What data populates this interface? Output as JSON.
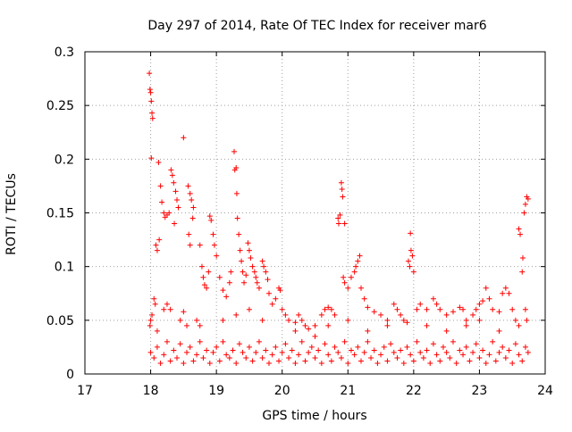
{
  "chart_data": {
    "type": "scatter",
    "title": "Day 297 of 2014, Rate Of TEC Index for receiver mar6",
    "xlabel": "GPS time / hours",
    "ylabel": "ROTI / TECUs",
    "xlim": [
      17,
      24
    ],
    "ylim": [
      0,
      0.3
    ],
    "x_ticks": [
      17,
      18,
      19,
      20,
      21,
      22,
      23,
      24
    ],
    "x_tick_labels": [
      "17",
      "18",
      "19",
      "20",
      "21",
      "22",
      "23",
      "24"
    ],
    "y_ticks": [
      0,
      0.05,
      0.1,
      0.15,
      0.2,
      0.25,
      0.3
    ],
    "y_tick_labels": [
      "0",
      "0.05",
      "0.1",
      "0.15",
      "0.2",
      "0.25",
      "0.3"
    ],
    "grid": true,
    "marker": "+",
    "color": "#ff0000",
    "series": [
      {
        "name": "ROTI",
        "points": [
          [
            17.98,
            0.28
          ],
          [
            17.99,
            0.265
          ],
          [
            18.0,
            0.262
          ],
          [
            18.01,
            0.254
          ],
          [
            18.02,
            0.243
          ],
          [
            18.03,
            0.238
          ],
          [
            18.01,
            0.201
          ],
          [
            18.12,
            0.197
          ],
          [
            18.15,
            0.175
          ],
          [
            18.17,
            0.16
          ],
          [
            18.2,
            0.15
          ],
          [
            18.22,
            0.146
          ],
          [
            18.25,
            0.148
          ],
          [
            18.28,
            0.15
          ],
          [
            18.08,
            0.12
          ],
          [
            18.1,
            0.115
          ],
          [
            18.13,
            0.125
          ],
          [
            18.31,
            0.19
          ],
          [
            18.33,
            0.185
          ],
          [
            18.35,
            0.178
          ],
          [
            18.38,
            0.17
          ],
          [
            18.4,
            0.162
          ],
          [
            18.42,
            0.155
          ],
          [
            18.36,
            0.14
          ],
          [
            18.5,
            0.22
          ],
          [
            18.57,
            0.175
          ],
          [
            18.6,
            0.168
          ],
          [
            18.62,
            0.162
          ],
          [
            18.65,
            0.155
          ],
          [
            18.58,
            0.13
          ],
          [
            18.6,
            0.12
          ],
          [
            18.64,
            0.145
          ],
          [
            18.75,
            0.12
          ],
          [
            18.78,
            0.1
          ],
          [
            18.8,
            0.09
          ],
          [
            18.82,
            0.083
          ],
          [
            18.85,
            0.08
          ],
          [
            18.9,
            0.147
          ],
          [
            18.92,
            0.143
          ],
          [
            18.95,
            0.13
          ],
          [
            18.97,
            0.12
          ],
          [
            19.0,
            0.11
          ],
          [
            18.88,
            0.095
          ],
          [
            19.05,
            0.09
          ],
          [
            19.1,
            0.078
          ],
          [
            19.15,
            0.072
          ],
          [
            19.2,
            0.085
          ],
          [
            19.22,
            0.095
          ],
          [
            19.27,
            0.207
          ],
          [
            19.28,
            0.19
          ],
          [
            19.3,
            0.192
          ],
          [
            19.31,
            0.168
          ],
          [
            19.32,
            0.145
          ],
          [
            19.34,
            0.13
          ],
          [
            19.36,
            0.115
          ],
          [
            19.38,
            0.105
          ],
          [
            19.4,
            0.095
          ],
          [
            19.42,
            0.085
          ],
          [
            19.45,
            0.092
          ],
          [
            19.48,
            0.122
          ],
          [
            19.5,
            0.115
          ],
          [
            19.52,
            0.108
          ],
          [
            19.55,
            0.1
          ],
          [
            19.58,
            0.095
          ],
          [
            19.6,
            0.09
          ],
          [
            19.62,
            0.085
          ],
          [
            19.65,
            0.08
          ],
          [
            19.7,
            0.105
          ],
          [
            19.72,
            0.1
          ],
          [
            19.75,
            0.095
          ],
          [
            19.78,
            0.088
          ],
          [
            19.8,
            0.075
          ],
          [
            19.85,
            0.065
          ],
          [
            19.9,
            0.07
          ],
          [
            19.95,
            0.08
          ],
          [
            19.97,
            0.078
          ],
          [
            20.0,
            0.06
          ],
          [
            20.05,
            0.055
          ],
          [
            20.1,
            0.05
          ],
          [
            20.2,
            0.048
          ],
          [
            20.25,
            0.055
          ],
          [
            20.3,
            0.05
          ],
          [
            20.35,
            0.045
          ],
          [
            20.4,
            0.042
          ],
          [
            20.5,
            0.045
          ],
          [
            20.6,
            0.055
          ],
          [
            20.65,
            0.06
          ],
          [
            20.7,
            0.062
          ],
          [
            20.75,
            0.06
          ],
          [
            20.8,
            0.055
          ],
          [
            20.85,
            0.145
          ],
          [
            20.86,
            0.14
          ],
          [
            20.88,
            0.148
          ],
          [
            20.9,
            0.178
          ],
          [
            20.91,
            0.172
          ],
          [
            20.92,
            0.165
          ],
          [
            20.95,
            0.14
          ],
          [
            20.93,
            0.09
          ],
          [
            20.95,
            0.085
          ],
          [
            21.0,
            0.08
          ],
          [
            21.05,
            0.09
          ],
          [
            21.1,
            0.095
          ],
          [
            21.12,
            0.1
          ],
          [
            21.15,
            0.105
          ],
          [
            21.18,
            0.11
          ],
          [
            21.2,
            0.08
          ],
          [
            21.25,
            0.07
          ],
          [
            21.3,
            0.062
          ],
          [
            21.4,
            0.058
          ],
          [
            21.5,
            0.055
          ],
          [
            21.6,
            0.05
          ],
          [
            21.7,
            0.065
          ],
          [
            21.75,
            0.06
          ],
          [
            21.8,
            0.055
          ],
          [
            21.85,
            0.05
          ],
          [
            21.9,
            0.048
          ],
          [
            21.92,
            0.105
          ],
          [
            21.94,
            0.1
          ],
          [
            21.95,
            0.131
          ],
          [
            21.96,
            0.115
          ],
          [
            21.98,
            0.11
          ],
          [
            22.0,
            0.095
          ],
          [
            22.05,
            0.06
          ],
          [
            22.1,
            0.065
          ],
          [
            22.2,
            0.06
          ],
          [
            22.3,
            0.07
          ],
          [
            22.35,
            0.065
          ],
          [
            22.4,
            0.06
          ],
          [
            22.5,
            0.055
          ],
          [
            22.6,
            0.058
          ],
          [
            22.7,
            0.062
          ],
          [
            22.75,
            0.06
          ],
          [
            22.8,
            0.05
          ],
          [
            22.9,
            0.055
          ],
          [
            22.95,
            0.06
          ],
          [
            23.0,
            0.065
          ],
          [
            23.05,
            0.068
          ],
          [
            23.1,
            0.08
          ],
          [
            23.15,
            0.07
          ],
          [
            23.2,
            0.06
          ],
          [
            23.3,
            0.058
          ],
          [
            23.35,
            0.075
          ],
          [
            23.4,
            0.08
          ],
          [
            23.45,
            0.075
          ],
          [
            23.5,
            0.06
          ],
          [
            23.55,
            0.05
          ],
          [
            23.6,
            0.135
          ],
          [
            23.62,
            0.13
          ],
          [
            23.65,
            0.095
          ],
          [
            23.66,
            0.108
          ],
          [
            23.68,
            0.15
          ],
          [
            23.7,
            0.158
          ],
          [
            23.72,
            0.165
          ],
          [
            23.74,
            0.163
          ],
          [
            23.7,
            0.06
          ],
          [
            23.72,
            0.05
          ],
          [
            17.99,
            0.045
          ],
          [
            18.0,
            0.05
          ],
          [
            18.02,
            0.055
          ],
          [
            18.05,
            0.07
          ],
          [
            18.07,
            0.065
          ],
          [
            18.1,
            0.04
          ],
          [
            18.2,
            0.06
          ],
          [
            18.25,
            0.065
          ],
          [
            18.3,
            0.06
          ],
          [
            18.45,
            0.05
          ],
          [
            18.5,
            0.058
          ],
          [
            18.55,
            0.045
          ],
          [
            18.7,
            0.05
          ],
          [
            18.75,
            0.045
          ],
          [
            19.1,
            0.05
          ],
          [
            19.3,
            0.055
          ],
          [
            19.5,
            0.06
          ],
          [
            19.7,
            0.05
          ],
          [
            20.2,
            0.04
          ],
          [
            20.5,
            0.035
          ],
          [
            20.7,
            0.045
          ],
          [
            21.0,
            0.05
          ],
          [
            21.3,
            0.04
          ],
          [
            21.6,
            0.045
          ],
          [
            22.2,
            0.045
          ],
          [
            22.5,
            0.04
          ],
          [
            22.8,
            0.045
          ],
          [
            23.0,
            0.05
          ],
          [
            23.3,
            0.04
          ],
          [
            23.6,
            0.045
          ],
          [
            18.0,
            0.02
          ],
          [
            18.05,
            0.015
          ],
          [
            18.1,
            0.025
          ],
          [
            18.15,
            0.01
          ],
          [
            18.2,
            0.018
          ],
          [
            18.25,
            0.03
          ],
          [
            18.3,
            0.012
          ],
          [
            18.35,
            0.022
          ],
          [
            18.4,
            0.015
          ],
          [
            18.45,
            0.028
          ],
          [
            18.5,
            0.01
          ],
          [
            18.55,
            0.02
          ],
          [
            18.6,
            0.025
          ],
          [
            18.65,
            0.012
          ],
          [
            18.7,
            0.018
          ],
          [
            18.75,
            0.03
          ],
          [
            18.8,
            0.015
          ],
          [
            18.85,
            0.022
          ],
          [
            18.9,
            0.01
          ],
          [
            18.95,
            0.02
          ],
          [
            19.0,
            0.025
          ],
          [
            19.05,
            0.012
          ],
          [
            19.1,
            0.03
          ],
          [
            19.15,
            0.018
          ],
          [
            19.2,
            0.015
          ],
          [
            19.25,
            0.022
          ],
          [
            19.3,
            0.01
          ],
          [
            19.35,
            0.028
          ],
          [
            19.4,
            0.02
          ],
          [
            19.45,
            0.015
          ],
          [
            19.5,
            0.025
          ],
          [
            19.55,
            0.012
          ],
          [
            19.6,
            0.02
          ],
          [
            19.65,
            0.03
          ],
          [
            19.7,
            0.015
          ],
          [
            19.75,
            0.022
          ],
          [
            19.8,
            0.01
          ],
          [
            19.85,
            0.018
          ],
          [
            19.9,
            0.025
          ],
          [
            19.95,
            0.012
          ],
          [
            20.0,
            0.02
          ],
          [
            20.05,
            0.028
          ],
          [
            20.1,
            0.015
          ],
          [
            20.15,
            0.022
          ],
          [
            20.2,
            0.01
          ],
          [
            20.25,
            0.018
          ],
          [
            20.3,
            0.03
          ],
          [
            20.35,
            0.012
          ],
          [
            20.4,
            0.02
          ],
          [
            20.45,
            0.025
          ],
          [
            20.5,
            0.015
          ],
          [
            20.55,
            0.022
          ],
          [
            20.6,
            0.01
          ],
          [
            20.65,
            0.028
          ],
          [
            20.7,
            0.018
          ],
          [
            20.75,
            0.012
          ],
          [
            20.8,
            0.025
          ],
          [
            20.85,
            0.02
          ],
          [
            20.9,
            0.015
          ],
          [
            20.95,
            0.03
          ],
          [
            21.0,
            0.01
          ],
          [
            21.05,
            0.022
          ],
          [
            21.1,
            0.018
          ],
          [
            21.15,
            0.025
          ],
          [
            21.2,
            0.012
          ],
          [
            21.25,
            0.02
          ],
          [
            21.3,
            0.03
          ],
          [
            21.35,
            0.015
          ],
          [
            21.4,
            0.022
          ],
          [
            21.45,
            0.01
          ],
          [
            21.5,
            0.018
          ],
          [
            21.55,
            0.025
          ],
          [
            21.6,
            0.012
          ],
          [
            21.65,
            0.028
          ],
          [
            21.7,
            0.02
          ],
          [
            21.75,
            0.015
          ],
          [
            21.8,
            0.022
          ],
          [
            21.85,
            0.01
          ],
          [
            21.9,
            0.025
          ],
          [
            21.95,
            0.018
          ],
          [
            22.0,
            0.012
          ],
          [
            22.05,
            0.03
          ],
          [
            22.1,
            0.02
          ],
          [
            22.15,
            0.015
          ],
          [
            22.2,
            0.022
          ],
          [
            22.25,
            0.01
          ],
          [
            22.3,
            0.028
          ],
          [
            22.35,
            0.018
          ],
          [
            22.4,
            0.012
          ],
          [
            22.45,
            0.025
          ],
          [
            22.5,
            0.02
          ],
          [
            22.55,
            0.015
          ],
          [
            22.6,
            0.03
          ],
          [
            22.65,
            0.01
          ],
          [
            22.7,
            0.022
          ],
          [
            22.75,
            0.018
          ],
          [
            22.8,
            0.025
          ],
          [
            22.85,
            0.012
          ],
          [
            22.9,
            0.02
          ],
          [
            22.95,
            0.028
          ],
          [
            23.0,
            0.015
          ],
          [
            23.05,
            0.022
          ],
          [
            23.1,
            0.01
          ],
          [
            23.15,
            0.018
          ],
          [
            23.2,
            0.03
          ],
          [
            23.25,
            0.012
          ],
          [
            23.3,
            0.02
          ],
          [
            23.35,
            0.025
          ],
          [
            23.4,
            0.015
          ],
          [
            23.45,
            0.022
          ],
          [
            23.5,
            0.01
          ],
          [
            23.55,
            0.028
          ],
          [
            23.6,
            0.018
          ],
          [
            23.65,
            0.012
          ],
          [
            23.7,
            0.025
          ],
          [
            23.74,
            0.02
          ]
        ]
      }
    ]
  }
}
